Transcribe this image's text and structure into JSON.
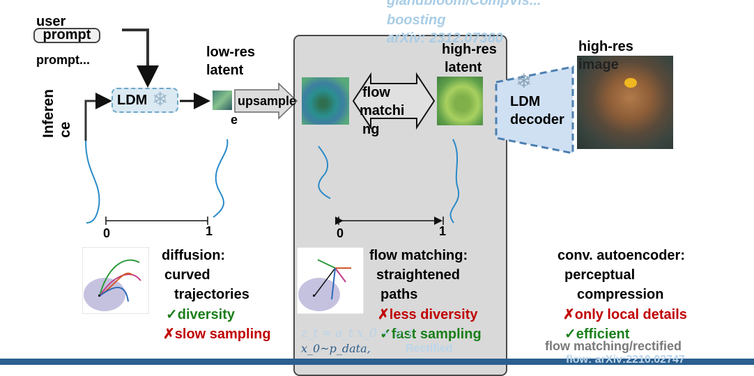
{
  "watermark": {
    "line1": "glandbloom/CompVis...",
    "line2": "boosting",
    "line3": "arXiv: 2312.07360"
  },
  "inference": {
    "vertical_label": "Inferen ce",
    "user_label": "user",
    "prompt_chip": "prompt",
    "prompt_text": "prompt..."
  },
  "ldm": {
    "label": "LDM"
  },
  "low_res": {
    "label_line1": "low-res",
    "label_line2": "latent"
  },
  "upsample": {
    "label": "upsample"
  },
  "flow_arrow": {
    "label_line1": "flow",
    "label_line2": "matchi",
    "label_line3": "ng"
  },
  "high_res_latent": {
    "label_line1": "high-res",
    "label_line2": "latent"
  },
  "decoder": {
    "label_line1": "LDM",
    "label_line2": "decoder"
  },
  "high_res_image": {
    "label_line1": "high-res",
    "label_line2": "image"
  },
  "axis_left": {
    "start": "0",
    "end": "1"
  },
  "axis_right": {
    "start": "0",
    "end": "1"
  },
  "diffusion_note": {
    "title": "diffusion:",
    "line1": "curved",
    "line2": "trajectories",
    "pro": "✓diversity",
    "con": "✗slow sampling"
  },
  "flow_note": {
    "title": "flow matching:",
    "line1": "straightened",
    "line2": "paths",
    "con": "✗less diversity",
    "pro": "✓fast sampling"
  },
  "autoencoder_note": {
    "title": "conv. autoencoder:",
    "line1": "perceptual",
    "line2": "compression",
    "con": "✗only local details",
    "pro": "✓efficient"
  },
  "footer": {
    "formula": "z_t = a_t x_0 + b_t",
    "sample": "x_0~p_data,",
    "rectified": "Rectified",
    "flow": "flow:",
    "reference": "flow matching/rectified",
    "reference2": "flow: arXiv:2210.02747"
  },
  "colors": {
    "curve_blue": "#2a8ac8",
    "ldm_fill": "#dbe9f3",
    "decoder_fill": "#cfe0f3",
    "panel_gray": "#d9d9d9",
    "pro_green": "#1a7f1a",
    "con_red": "#c00000"
  }
}
